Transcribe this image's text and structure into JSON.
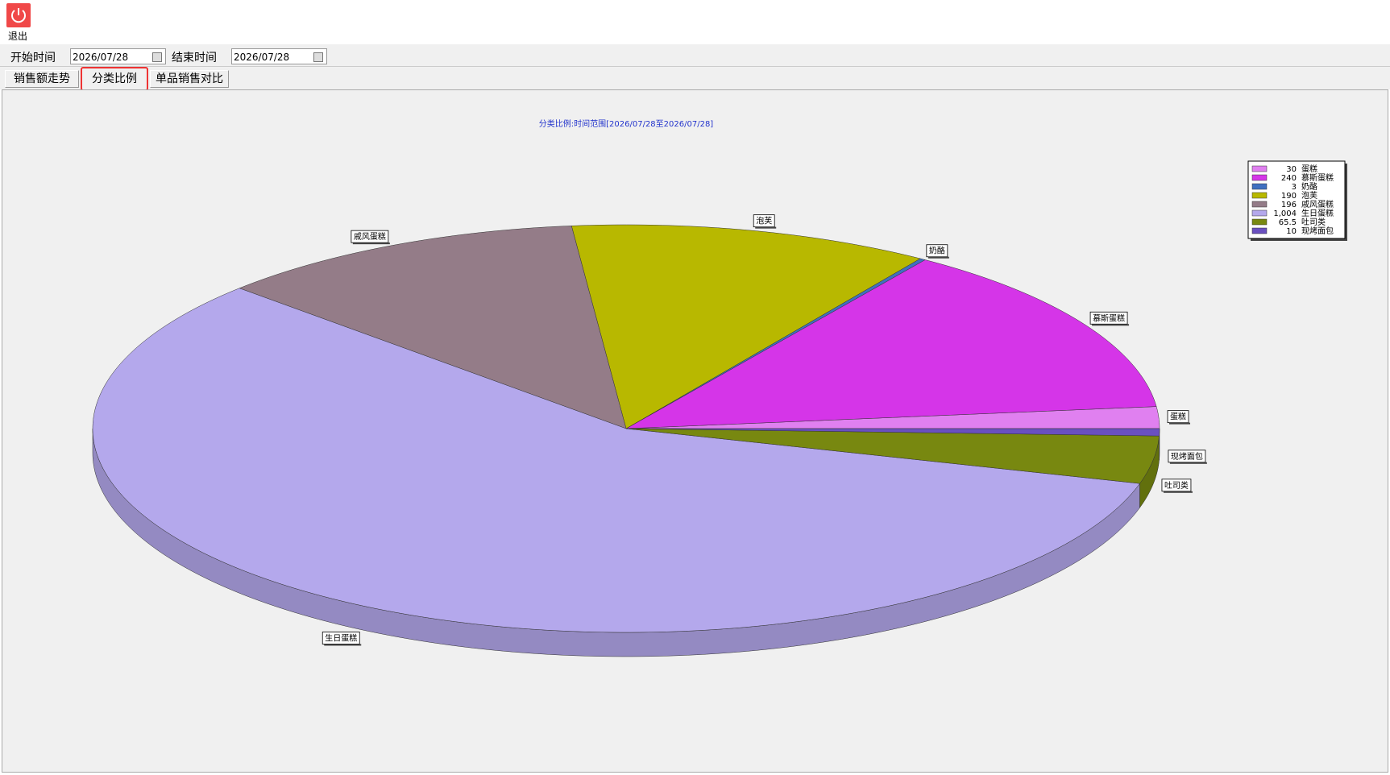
{
  "toolbar": {
    "exit": "退出"
  },
  "filters": {
    "start_label": "开始时间",
    "start_value": "2026/07/28",
    "end_label": "结束时间",
    "end_value": "2026/07/28"
  },
  "tabs": [
    "销售额走势",
    "分类比例",
    "单品销售对比"
  ],
  "chart_data": {
    "type": "pie",
    "title": "分类比例:时间范围[2026/07/28至2026/07/28]",
    "categories": [
      "蛋糕",
      "慕斯蛋糕",
      "奶酪",
      "泡芙",
      "戚风蛋糕",
      "生日蛋糕",
      "吐司类",
      "现烤面包"
    ],
    "values": [
      30,
      240,
      3,
      190,
      196,
      1004,
      65.5,
      10
    ],
    "value_labels": [
      "30",
      "240",
      "3",
      "190",
      "196",
      "1,004",
      "65.5",
      "10"
    ],
    "colors": [
      "#e080f0",
      "#d535e8",
      "#4070c0",
      "#b8b800",
      "#947c88",
      "#b4a8ec",
      "#788810",
      "#6a50c0"
    ],
    "legend": "top-right"
  }
}
